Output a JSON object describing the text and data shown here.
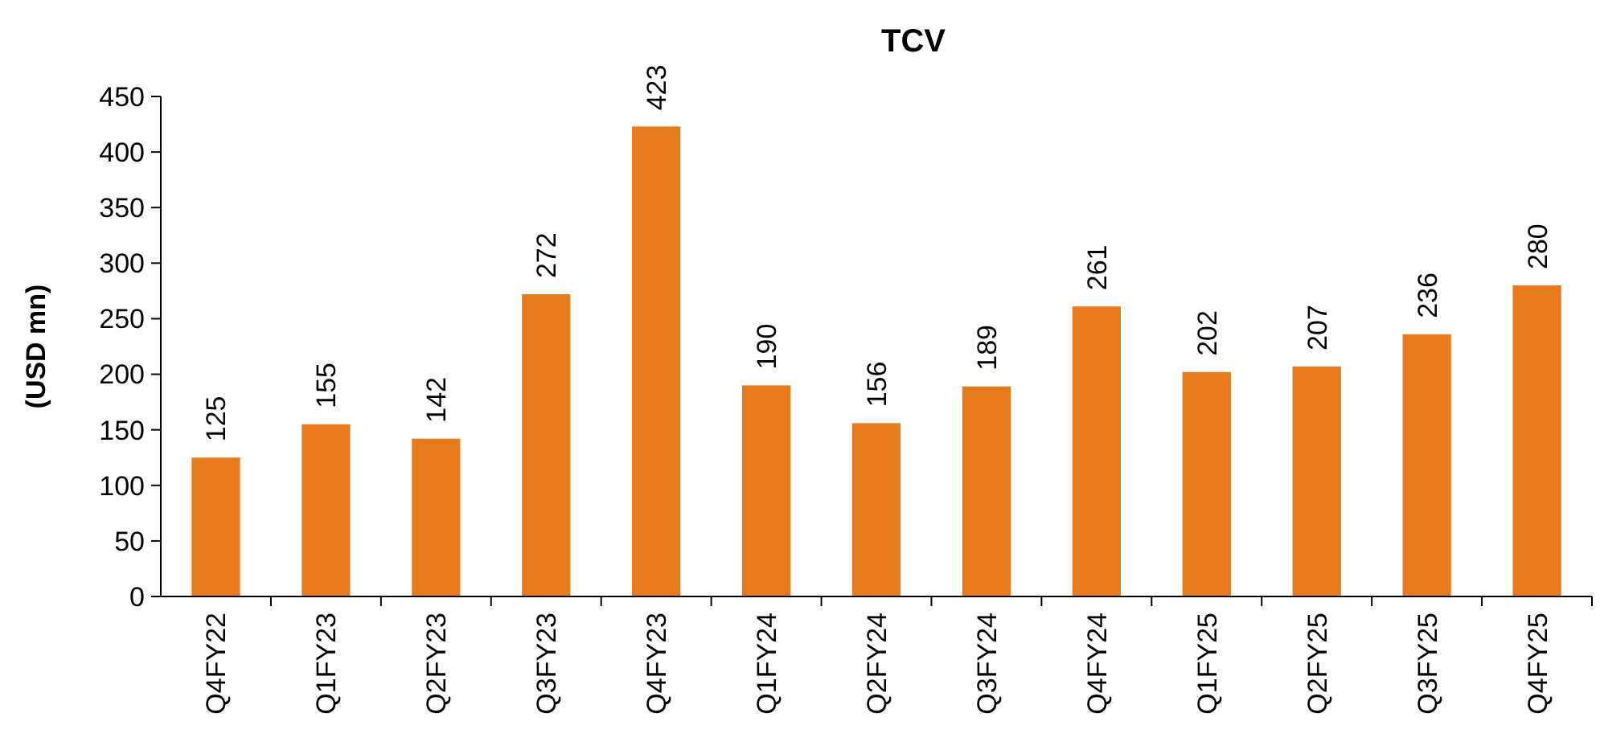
{
  "chart_data": {
    "type": "bar",
    "title": "TCV",
    "ylabel": "(USD mn)",
    "categories": [
      "Q4FY22",
      "Q1FY23",
      "Q2FY23",
      "Q3FY23",
      "Q4FY23",
      "Q1FY24",
      "Q2FY24",
      "Q3FY24",
      "Q4FY24",
      "Q1FY25",
      "Q2FY25",
      "Q3FY25",
      "Q4FY25"
    ],
    "values": [
      125,
      155,
      142,
      272,
      423,
      190,
      156,
      189,
      261,
      202,
      207,
      236,
      280
    ],
    "color": "#e87a1e",
    "ylim": [
      0,
      450
    ],
    "yticks": [
      0,
      50,
      100,
      150,
      200,
      250,
      300,
      350,
      400,
      450
    ],
    "data_labels": true,
    "grid": false
  }
}
